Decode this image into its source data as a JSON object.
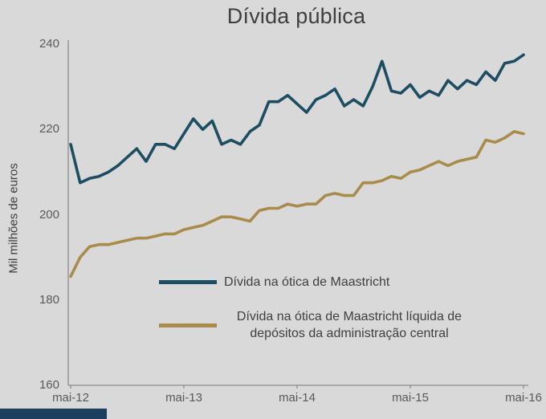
{
  "page": {
    "background_color": "#d9d9d9",
    "text_color": "#3f3f3f"
  },
  "chart_data": {
    "type": "line",
    "title": "Dívida pública",
    "ylabel": "Mil milhões de euros",
    "xlabel": "",
    "ylim": [
      160,
      240
    ],
    "yticks": [
      160,
      180,
      200,
      220,
      240
    ],
    "x_tick_labels": [
      "mai-12",
      "mai-13",
      "mai-14",
      "mai-15",
      "mai-16"
    ],
    "x_tick_positions": [
      0,
      12,
      24,
      36,
      48
    ],
    "grid": false,
    "axis_color": "#8c8c8c",
    "legend_position": "inside bottom-center",
    "series": [
      {
        "key": "maastricht",
        "name": "Dívida na ótica de Maastricht",
        "color": "#1d4d63",
        "values": [
          216.5,
          207.5,
          208.5,
          209,
          210,
          211.5,
          213.5,
          215.5,
          212.5,
          216.5,
          216.5,
          215.5,
          219,
          222.5,
          220,
          222,
          216.5,
          217.5,
          216.5,
          219.5,
          221,
          226.5,
          226.5,
          228,
          226,
          224,
          227,
          228,
          229.5,
          225.5,
          227,
          225.5,
          230,
          236,
          229,
          228.5,
          230.5,
          227.5,
          229,
          228,
          231.5,
          229.5,
          231.5,
          230.5,
          233.5,
          231.5,
          235.5,
          236,
          237.5
        ]
      },
      {
        "key": "maastricht-net",
        "name": "Dívida na ótica de Maastricht líquida de depósitos da administração central",
        "color": "#a98c4b",
        "values": [
          185.5,
          190,
          192.5,
          193,
          193,
          193.5,
          194,
          194.5,
          194.5,
          195,
          195.5,
          195.5,
          196.5,
          197,
          197.5,
          198.5,
          199.5,
          199.5,
          199,
          198.5,
          201,
          201.5,
          201.5,
          202.5,
          202,
          202.5,
          202.5,
          204.5,
          205,
          204.5,
          204.5,
          207.5,
          207.5,
          208,
          209,
          208.5,
          210,
          210.5,
          211.5,
          212.5,
          211.5,
          212.5,
          213,
          213.5,
          217.5,
          217,
          218,
          219.5,
          219
        ]
      }
    ]
  }
}
